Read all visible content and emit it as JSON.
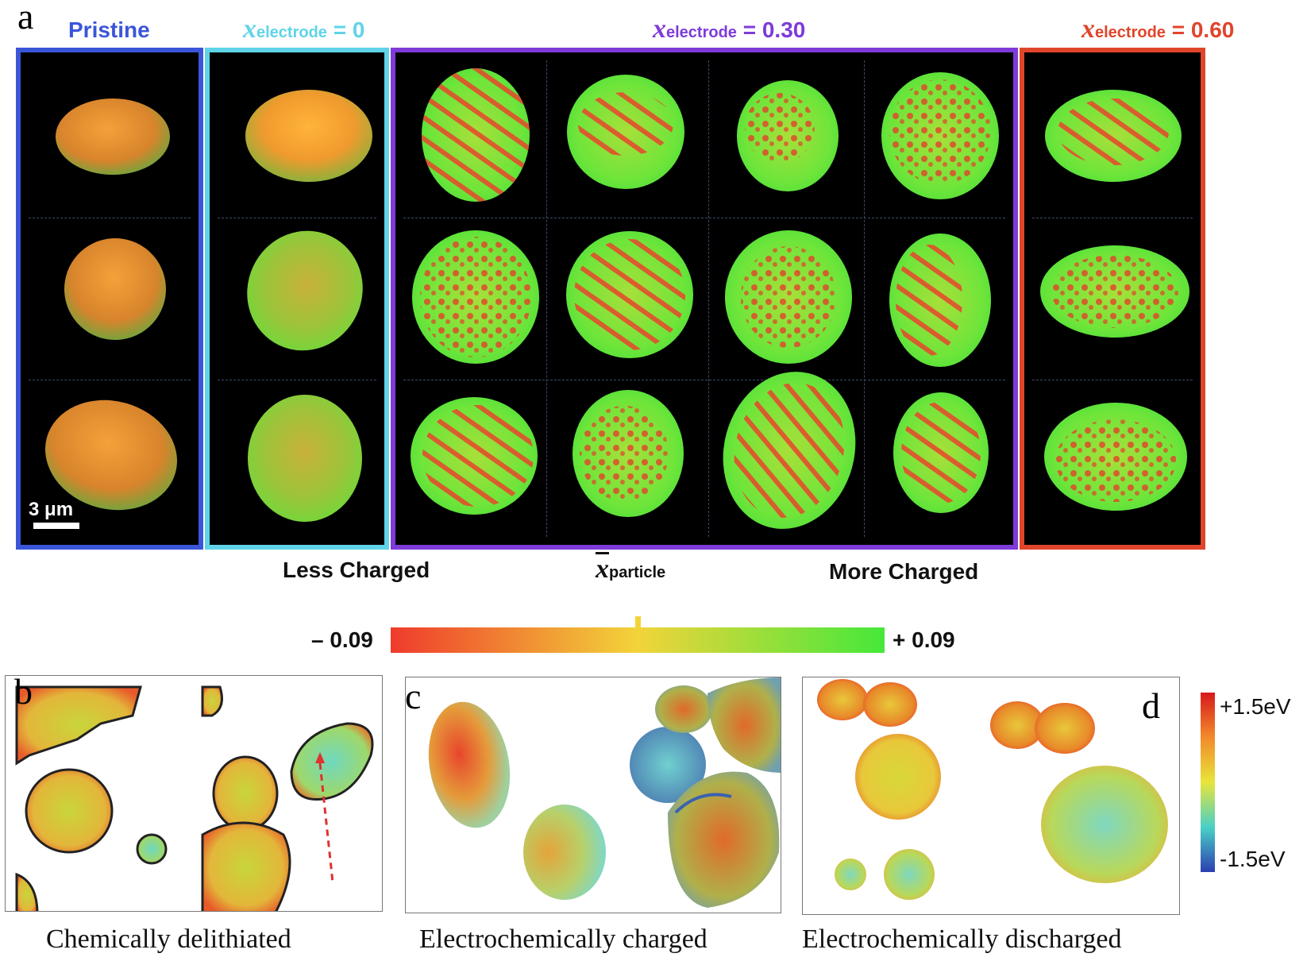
{
  "panel_a": {
    "letter": "a",
    "groups": [
      {
        "id": "pristine",
        "label": "Pristine",
        "color": "#3b55d9"
      },
      {
        "id": "x0",
        "xvar": "x",
        "sub": "electrode",
        "value": " = 0",
        "color": "#5fd4e8"
      },
      {
        "id": "x030",
        "xvar": "x",
        "sub": "electrode",
        "value": " = 0.30",
        "color": "#7e3bd9"
      },
      {
        "id": "x060",
        "xvar": "x",
        "sub": "electrode",
        "value": " = 0.60",
        "color": "#e0452b"
      }
    ],
    "scale_bar": "3 μm",
    "colorbar": {
      "left_label": "Less Charged",
      "right_label": "More Charged",
      "symbol": "x",
      "symbol_sub": "particle",
      "min_label": "– 0.09",
      "max_label": "+ 0.09",
      "colors": [
        "#ef3b2c",
        "#f2d43a",
        "#45e83a"
      ]
    }
  },
  "panels_bcd": {
    "b": {
      "letter": "b",
      "caption": "Chemically delithiated"
    },
    "c": {
      "letter": "c",
      "caption": "Electrochemically charged"
    },
    "d": {
      "letter": "d",
      "caption": "Electrochemically discharged"
    },
    "energy_bar": {
      "max_label": "+1.5eV",
      "min_label": "-1.5eV",
      "colors": [
        "#d7191c",
        "#f28a2b",
        "#e8e53a",
        "#4ad0c7",
        "#2b3fb0"
      ]
    }
  }
}
